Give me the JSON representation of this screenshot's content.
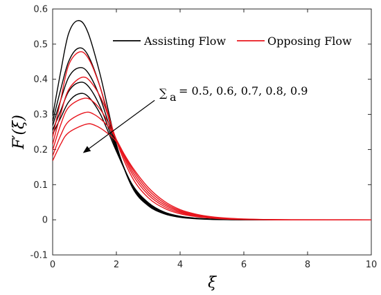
{
  "chart_data": {
    "type": "line",
    "xlabel": "ξ",
    "ylabel": "F′(ξ)",
    "xlim": [
      0,
      10
    ],
    "ylim": [
      -0.1,
      0.6
    ],
    "xticks": [
      "0",
      "2",
      "4",
      "6",
      "8",
      "10"
    ],
    "yticks": [
      "-0.1",
      "0",
      "0.1",
      "0.2",
      "0.3",
      "0.4",
      "0.5",
      "0.6"
    ],
    "grid": false,
    "legend_placement": "top-right",
    "legend": [
      {
        "name": "Assisting Flow",
        "color": "#000000"
      },
      {
        "name": "Opposing Flow",
        "color": "#e8141c"
      }
    ],
    "annotation": {
      "symbol": "∑",
      "subscript": "a",
      "text": "= 0.5, 0.6, 0.7, 0.8, 0.9",
      "arrow_from": [
        3.2,
        0.34
      ],
      "arrow_to": [
        0.95,
        0.19
      ]
    },
    "series": [
      {
        "group": "Assisting Flow",
        "color": "#000000",
        "values": [
          [
            0,
            0.295
          ],
          [
            0.25,
            0.42
          ],
          [
            0.5,
            0.53
          ],
          [
            0.8,
            0.567
          ],
          [
            1.1,
            0.535
          ],
          [
            1.5,
            0.41
          ],
          [
            2.0,
            0.215
          ],
          [
            2.5,
            0.092
          ],
          [
            3.0,
            0.04
          ],
          [
            3.5,
            0.017
          ],
          [
            4.0,
            0.007
          ],
          [
            4.5,
            0.003
          ],
          [
            5.0,
            0.001
          ],
          [
            5.5,
            0.0004
          ],
          [
            6.0,
            0.0001
          ],
          [
            7.0,
            0
          ],
          [
            10.0,
            0
          ]
        ]
      },
      {
        "group": "Assisting Flow",
        "color": "#000000",
        "values": [
          [
            0,
            0.28
          ],
          [
            0.25,
            0.37
          ],
          [
            0.5,
            0.45
          ],
          [
            0.8,
            0.488
          ],
          [
            1.1,
            0.47
          ],
          [
            1.5,
            0.375
          ],
          [
            2.0,
            0.21
          ],
          [
            2.5,
            0.095
          ],
          [
            3.0,
            0.043
          ],
          [
            3.5,
            0.019
          ],
          [
            4.0,
            0.008
          ],
          [
            4.5,
            0.0035
          ],
          [
            5.0,
            0.0015
          ],
          [
            5.5,
            0.0005
          ],
          [
            6.0,
            0.0002
          ],
          [
            7.0,
            0
          ],
          [
            10.0,
            0
          ]
        ]
      },
      {
        "group": "Assisting Flow",
        "color": "#000000",
        "values": [
          [
            0,
            0.268
          ],
          [
            0.25,
            0.34
          ],
          [
            0.5,
            0.405
          ],
          [
            0.8,
            0.432
          ],
          [
            1.1,
            0.42
          ],
          [
            1.5,
            0.345
          ],
          [
            2.0,
            0.205
          ],
          [
            2.5,
            0.097
          ],
          [
            3.0,
            0.045
          ],
          [
            3.5,
            0.02
          ],
          [
            4.0,
            0.009
          ],
          [
            4.5,
            0.004
          ],
          [
            5.0,
            0.0017
          ],
          [
            5.5,
            0.0006
          ],
          [
            6.0,
            0.0002
          ],
          [
            7.0,
            0
          ],
          [
            10.0,
            0
          ]
        ]
      },
      {
        "group": "Assisting Flow",
        "color": "#000000",
        "values": [
          [
            0,
            0.255
          ],
          [
            0.25,
            0.31
          ],
          [
            0.5,
            0.365
          ],
          [
            0.8,
            0.39
          ],
          [
            1.1,
            0.382
          ],
          [
            1.5,
            0.32
          ],
          [
            2.0,
            0.2
          ],
          [
            2.5,
            0.099
          ],
          [
            3.0,
            0.047
          ],
          [
            3.5,
            0.021
          ],
          [
            4.0,
            0.0095
          ],
          [
            4.5,
            0.0042
          ],
          [
            5.0,
            0.0018
          ],
          [
            5.5,
            0.0007
          ],
          [
            6.0,
            0.0002
          ],
          [
            7.0,
            0
          ],
          [
            10.0,
            0
          ]
        ]
      },
      {
        "group": "Assisting Flow",
        "color": "#000000",
        "values": [
          [
            0,
            0.243
          ],
          [
            0.25,
            0.29
          ],
          [
            0.5,
            0.335
          ],
          [
            0.8,
            0.358
          ],
          [
            1.1,
            0.352
          ],
          [
            1.5,
            0.3
          ],
          [
            2.0,
            0.195
          ],
          [
            2.5,
            0.1
          ],
          [
            3.0,
            0.049
          ],
          [
            3.5,
            0.022
          ],
          [
            4.0,
            0.01
          ],
          [
            4.5,
            0.0045
          ],
          [
            5.0,
            0.002
          ],
          [
            5.5,
            0.0008
          ],
          [
            6.0,
            0.0003
          ],
          [
            7.0,
            0
          ],
          [
            10.0,
            0
          ]
        ]
      },
      {
        "group": "Opposing Flow",
        "color": "#e8141c",
        "values": [
          [
            0,
            0.235
          ],
          [
            0.25,
            0.34
          ],
          [
            0.5,
            0.44
          ],
          [
            0.85,
            0.478
          ],
          [
            1.15,
            0.455
          ],
          [
            1.5,
            0.375
          ],
          [
            2.0,
            0.225
          ],
          [
            2.5,
            0.12
          ],
          [
            3.0,
            0.063
          ],
          [
            3.5,
            0.033
          ],
          [
            4.0,
            0.017
          ],
          [
            4.5,
            0.009
          ],
          [
            5.0,
            0.0045
          ],
          [
            5.5,
            0.002
          ],
          [
            6.0,
            0.001
          ],
          [
            6.5,
            0.0004
          ],
          [
            7.5,
            0
          ],
          [
            10.0,
            0
          ]
        ]
      },
      {
        "group": "Opposing Flow",
        "color": "#e8141c",
        "values": [
          [
            0,
            0.215
          ],
          [
            0.25,
            0.3
          ],
          [
            0.5,
            0.37
          ],
          [
            0.9,
            0.405
          ],
          [
            1.2,
            0.392
          ],
          [
            1.6,
            0.33
          ],
          [
            2.0,
            0.228
          ],
          [
            2.5,
            0.13
          ],
          [
            3.0,
            0.071
          ],
          [
            3.5,
            0.038
          ],
          [
            4.0,
            0.02
          ],
          [
            4.5,
            0.0105
          ],
          [
            5.0,
            0.0055
          ],
          [
            5.5,
            0.0027
          ],
          [
            6.0,
            0.0013
          ],
          [
            6.5,
            0.0005
          ],
          [
            7.5,
            0
          ],
          [
            10.0,
            0
          ]
        ]
      },
      {
        "group": "Opposing Flow",
        "color": "#e8141c",
        "values": [
          [
            0,
            0.198
          ],
          [
            0.25,
            0.27
          ],
          [
            0.5,
            0.32
          ],
          [
            0.95,
            0.345
          ],
          [
            1.25,
            0.338
          ],
          [
            1.6,
            0.3
          ],
          [
            2.0,
            0.228
          ],
          [
            2.5,
            0.138
          ],
          [
            3.0,
            0.078
          ],
          [
            3.5,
            0.043
          ],
          [
            4.0,
            0.023
          ],
          [
            4.5,
            0.012
          ],
          [
            5.0,
            0.0065
          ],
          [
            5.5,
            0.0033
          ],
          [
            6.0,
            0.0016
          ],
          [
            6.5,
            0.0007
          ],
          [
            7.5,
            0
          ],
          [
            10.0,
            0
          ]
        ]
      },
      {
        "group": "Opposing Flow",
        "color": "#e8141c",
        "values": [
          [
            0,
            0.182
          ],
          [
            0.25,
            0.24
          ],
          [
            0.5,
            0.28
          ],
          [
            1.0,
            0.305
          ],
          [
            1.3,
            0.3
          ],
          [
            1.7,
            0.27
          ],
          [
            2.0,
            0.228
          ],
          [
            2.5,
            0.145
          ],
          [
            3.0,
            0.085
          ],
          [
            3.5,
            0.048
          ],
          [
            4.0,
            0.026
          ],
          [
            4.5,
            0.014
          ],
          [
            5.0,
            0.0075
          ],
          [
            5.5,
            0.0038
          ],
          [
            6.0,
            0.0019
          ],
          [
            6.5,
            0.0009
          ],
          [
            7.5,
            0.0001
          ],
          [
            10.0,
            0
          ]
        ]
      },
      {
        "group": "Opposing Flow",
        "color": "#e8141c",
        "values": [
          [
            0,
            0.168
          ],
          [
            0.25,
            0.215
          ],
          [
            0.5,
            0.248
          ],
          [
            1.05,
            0.272
          ],
          [
            1.35,
            0.268
          ],
          [
            1.7,
            0.248
          ],
          [
            2.0,
            0.222
          ],
          [
            2.5,
            0.15
          ],
          [
            3.0,
            0.092
          ],
          [
            3.5,
            0.053
          ],
          [
            4.0,
            0.029
          ],
          [
            4.5,
            0.016
          ],
          [
            5.0,
            0.0085
          ],
          [
            5.5,
            0.0045
          ],
          [
            6.0,
            0.0023
          ],
          [
            6.5,
            0.0011
          ],
          [
            7.5,
            0.0002
          ],
          [
            10.0,
            0
          ]
        ]
      }
    ]
  }
}
